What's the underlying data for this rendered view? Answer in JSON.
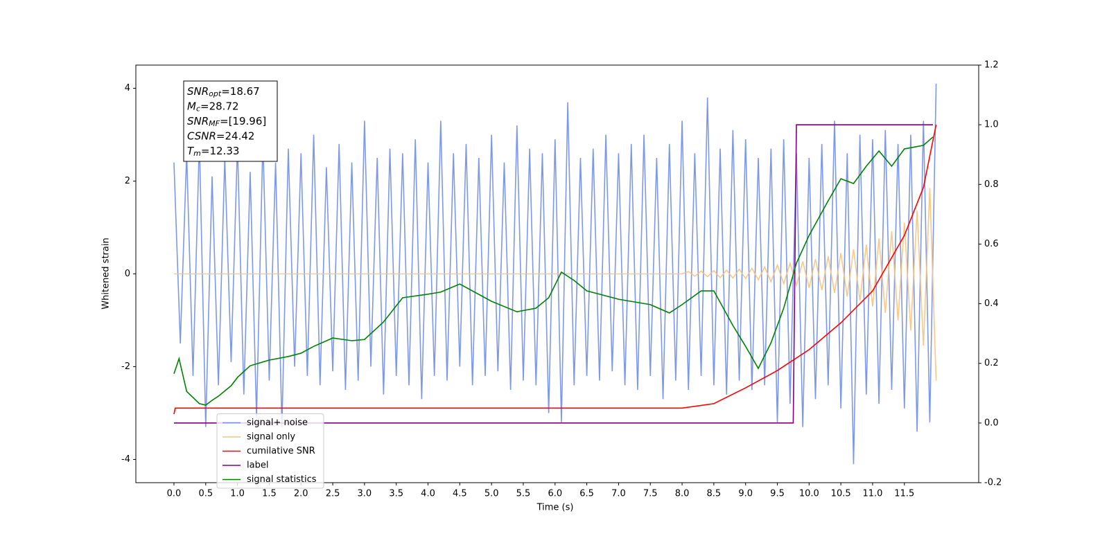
{
  "chart_data": {
    "type": "line",
    "xlabel": "Time (s)",
    "ylabel": "Whitened strain",
    "xlim": [
      -0.6,
      12.67
    ],
    "ylim": [
      -4.5,
      4.5
    ],
    "y2lim": [
      -0.2,
      1.2
    ],
    "xticks": [
      {
        "value": 0,
        "label": "0.0"
      },
      0.5,
      {
        "value": 1,
        "label": "1.0"
      },
      1.5,
      {
        "value": 2,
        "label": "2.0"
      },
      2.5,
      {
        "value": 3,
        "label": "3.0"
      },
      3.5,
      {
        "value": 4,
        "label": "4.0"
      },
      4.5,
      {
        "value": 5,
        "label": "5.0"
      },
      5.5,
      {
        "value": 6,
        "label": "6.0"
      },
      6.5,
      {
        "value": 7,
        "label": "7.0"
      },
      7.5,
      {
        "value": 8,
        "label": "8.0"
      },
      8.5,
      {
        "value": 9,
        "label": "9.0"
      },
      9.5,
      {
        "value": 10,
        "label": "10.0"
      },
      10.5,
      {
        "value": 11,
        "label": "11.0"
      },
      11.5
    ],
    "yticks": [
      -4,
      -2,
      0,
      2,
      4
    ],
    "y2ticks": [
      -0.2,
      {
        "value": 0,
        "label": "0.0"
      },
      0.2,
      0.4,
      0.6,
      0.8,
      {
        "value": 1,
        "label": "1.0"
      },
      1.2
    ],
    "legend": "lower left",
    "annotations": [
      {
        "base": "SNR",
        "sub": "opt",
        "rest": "=18.67"
      },
      {
        "base": "M",
        "sub": "c",
        "rest": "=28.72"
      },
      {
        "base": "SNR",
        "sub": "MF",
        "rest": "=[19.96]"
      },
      {
        "base": "CSNR",
        "rest": "=24.42"
      },
      {
        "base": "T",
        "sub": "m",
        "rest": "=12.33"
      }
    ],
    "series": [
      {
        "name": "signal+ noise",
        "color": "#6f8de6",
        "axis": "y",
        "x": [
          0,
          0.1,
          0.2,
          0.3,
          0.4,
          0.5,
          0.6,
          0.7,
          0.8,
          0.9,
          1,
          1.1,
          1.2,
          1.3,
          1.4,
          1.5,
          1.6,
          1.7,
          1.8,
          1.9,
          2,
          2.1,
          2.2,
          2.3,
          2.4,
          2.5,
          2.6,
          2.7,
          2.8,
          2.9,
          3,
          3.1,
          3.2,
          3.3,
          3.4,
          3.5,
          3.6,
          3.7,
          3.8,
          3.9,
          4,
          4.1,
          4.2,
          4.3,
          4.4,
          4.5,
          4.6,
          4.7,
          4.8,
          4.9,
          5,
          5.1,
          5.2,
          5.3,
          5.4,
          5.5,
          5.6,
          5.7,
          5.8,
          5.9,
          6,
          6.1,
          6.2,
          6.3,
          6.4,
          6.5,
          6.6,
          6.7,
          6.8,
          6.9,
          7,
          7.1,
          7.2,
          7.3,
          7.4,
          7.5,
          7.6,
          7.7,
          7.8,
          7.9,
          8,
          8.1,
          8.2,
          8.3,
          8.4,
          8.5,
          8.6,
          8.7,
          8.8,
          8.9,
          9,
          9.1,
          9.2,
          9.3,
          9.4,
          9.5,
          9.6,
          9.7,
          9.8,
          9.9,
          10,
          10.1,
          10.2,
          10.3,
          10.4,
          10.5,
          10.6,
          10.7,
          10.8,
          10.9,
          11,
          11.1,
          11.2,
          11.3,
          11.4,
          11.5,
          11.6,
          11.7,
          11.8,
          11.9,
          12
        ],
        "values": [
          2.4,
          -1.5,
          2.6,
          -2.2,
          2.9,
          -3.3,
          2.1,
          -2.4,
          2.5,
          -1.9,
          2.8,
          -2.6,
          2.2,
          -3.1,
          2.9,
          -2.3,
          2.4,
          -3.3,
          2.7,
          -2.0,
          2.6,
          -2.2,
          3.0,
          -2.4,
          2.3,
          -2.1,
          2.8,
          -2.5,
          2.4,
          -2.3,
          3.3,
          -2.0,
          2.5,
          -2.6,
          2.7,
          -2.2,
          2.6,
          -2.4,
          2.9,
          -2.7,
          2.4,
          -2.2,
          3.3,
          -2.3,
          2.6,
          -2.0,
          2.8,
          -2.4,
          2.5,
          -2.2,
          3.0,
          -2.1,
          2.4,
          -2.5,
          3.2,
          -2.3,
          2.7,
          -2.4,
          2.6,
          -3.0,
          2.9,
          -3.2,
          3.7,
          -2.4,
          2.5,
          -2.2,
          2.7,
          -2.3,
          3.0,
          -2.1,
          2.6,
          -2.4,
          2.8,
          -2.5,
          3.0,
          -2.2,
          2.5,
          -2.7,
          2.8,
          -2.3,
          3.3,
          -2.5,
          2.6,
          -2.2,
          3.8,
          -2.4,
          2.7,
          -2.6,
          3.1,
          -2.3,
          2.9,
          -2.5,
          2.5,
          -2.4,
          2.7,
          -3.2,
          2.9,
          -2.8,
          2.6,
          -3.3,
          2.5,
          -2.7,
          2.8,
          -2.4,
          3.3,
          -2.9,
          2.6,
          -4.1,
          3.0,
          -2.6,
          2.9,
          -2.8,
          3.1,
          -2.5,
          2.8,
          -2.9,
          3.0,
          -3.4,
          3.3,
          -3.2,
          4.1
        ]
      },
      {
        "name": "signal only",
        "color": "#f7c27a",
        "axis": "y",
        "x": [
          0,
          8,
          8.1,
          8.2,
          8.3,
          8.4,
          8.5,
          8.6,
          8.7,
          8.8,
          8.9,
          9,
          9.1,
          9.2,
          9.3,
          9.4,
          9.5,
          9.6,
          9.7,
          9.8,
          9.9,
          10,
          10.1,
          10.2,
          10.3,
          10.4,
          10.5,
          10.6,
          10.7,
          10.8,
          10.9,
          11,
          11.1,
          11.2,
          11.3,
          11.4,
          11.5,
          11.6,
          11.7,
          11.8,
          11.9,
          12
        ],
        "values": [
          0,
          0,
          0.05,
          -0.05,
          0.06,
          -0.06,
          0.07,
          -0.08,
          0.08,
          -0.09,
          0.1,
          -0.1,
          0.12,
          -0.13,
          0.15,
          -0.17,
          0.19,
          -0.21,
          0.23,
          -0.25,
          0.27,
          -0.3,
          0.32,
          -0.35,
          0.38,
          -0.41,
          0.45,
          -0.49,
          0.53,
          -0.58,
          0.63,
          -0.7,
          0.76,
          -0.84,
          0.92,
          -1.0,
          1.1,
          -1.22,
          1.36,
          -1.55,
          1.85,
          -2.3
        ]
      },
      {
        "name": "cumilative SNR",
        "color": "#ff0000",
        "axis": "y2",
        "x": [
          0,
          0.02,
          8,
          8.5,
          9,
          9.5,
          10,
          10.5,
          11,
          11.5,
          11.8,
          12
        ],
        "values": [
          0.03,
          0.05,
          0.05,
          0.065,
          0.118,
          0.176,
          0.246,
          0.336,
          0.443,
          0.629,
          0.79,
          1.0
        ]
      },
      {
        "name": "label",
        "color": "#800080",
        "axis": "y2",
        "x": [
          0,
          9.75,
          9.8,
          11.95
        ],
        "values": [
          0,
          0,
          1,
          1
        ]
      },
      {
        "name": "signal statistics",
        "color": "#008000",
        "axis": "y2",
        "x": [
          0,
          0.08,
          0.2,
          0.4,
          0.5,
          0.6,
          0.7,
          0.9,
          1,
          1.2,
          1.5,
          1.8,
          2,
          2.2,
          2.5,
          2.8,
          3,
          3.3,
          3.6,
          4,
          4.2,
          4.5,
          5,
          5.4,
          5.7,
          5.9,
          6.1,
          6.3,
          6.5,
          7,
          7.5,
          7.8,
          8,
          8.3,
          8.5,
          8.8,
          9,
          9.2,
          9.4,
          9.6,
          9.8,
          10,
          10.3,
          10.5,
          10.7,
          10.9,
          11.1,
          11.3,
          11.5,
          11.8,
          11.95
        ],
        "values": [
          0.165,
          0.216,
          0.106,
          0.065,
          0.06,
          0.076,
          0.09,
          0.125,
          0.153,
          0.192,
          0.211,
          0.223,
          0.234,
          0.257,
          0.285,
          0.276,
          0.28,
          0.339,
          0.42,
          0.432,
          0.439,
          0.466,
          0.408,
          0.373,
          0.385,
          0.42,
          0.506,
          0.478,
          0.443,
          0.415,
          0.397,
          0.369,
          0.397,
          0.443,
          0.443,
          0.327,
          0.257,
          0.183,
          0.269,
          0.385,
          0.536,
          0.629,
          0.745,
          0.819,
          0.803,
          0.861,
          0.912,
          0.861,
          0.919,
          0.931,
          0.959
        ]
      }
    ]
  }
}
